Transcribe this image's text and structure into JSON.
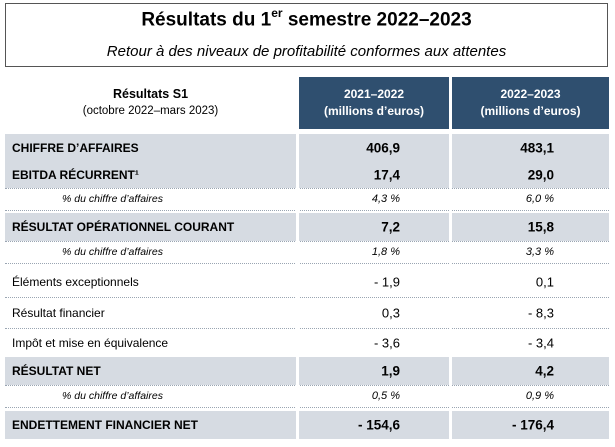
{
  "title": {
    "prefix": "Résultats du 1",
    "superscript": "er",
    "suffix": " semestre 2022–2023",
    "subtitle": "Retour à des niveaux de profitabilité conformes aux attentes"
  },
  "table": {
    "header": {
      "label": "Résultats S1",
      "sublabel": "(octobre 2022–mars 2023)",
      "col1_line1": "2021–2022",
      "col1_line2": "(millions d’euros)",
      "col2_line1": "2022–2023",
      "col2_line2": "(millions d’euros)"
    },
    "rows": [
      {
        "label": "CHIFFRE D’AFFAIRES",
        "v1": "406,9",
        "v2": "483,1",
        "style": "bold"
      },
      {
        "label": "EBITDA RÉCURRENT¹",
        "v1": "17,4",
        "v2": "29,0",
        "style": "bold"
      },
      {
        "label": "% du chiffre d’affaires",
        "v1": "4,3 %",
        "v2": "6,0 %",
        "style": "pct"
      },
      {
        "label": "RÉSULTAT OPÉRATIONNEL COURANT",
        "v1": "7,2",
        "v2": "15,8",
        "style": "bold"
      },
      {
        "label": "% du chiffre d’affaires",
        "v1": "1,8 %",
        "v2": "3,3 %",
        "style": "pct"
      },
      {
        "label": "Éléments exceptionnels",
        "v1": "- 1,9",
        "v2": "0,1",
        "style": "plain"
      },
      {
        "label": "Résultat financier",
        "v1": "0,3",
        "v2": "- 8,3",
        "style": "plain"
      },
      {
        "label": "Impôt et mise en équivalence",
        "v1": "- 3,6",
        "v2": "- 3,4",
        "style": "plain"
      },
      {
        "label": "RÉSULTAT NET",
        "v1": "1,9",
        "v2": "4,2",
        "style": "bold"
      },
      {
        "label": "% du chiffre d’affaires",
        "v1": "0,5 %",
        "v2": "0,9 %",
        "style": "pct"
      },
      {
        "label": "ENDETTEMENT FINANCIER NET",
        "v1": "- 154,6",
        "v2": "- 176,4",
        "style": "bold"
      }
    ]
  },
  "colors": {
    "header_bg": "#2f4f6f",
    "row_shade": "#d6dbe2"
  }
}
